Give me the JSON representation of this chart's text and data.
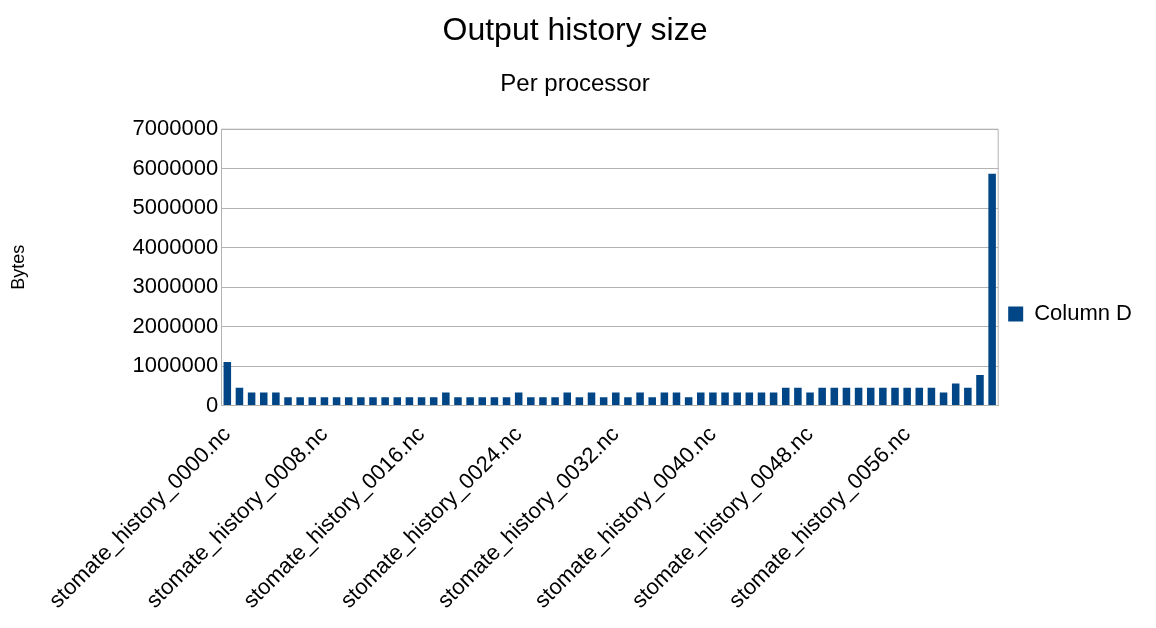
{
  "chart_data": {
    "type": "bar",
    "title": "Output history size",
    "subtitle": "Per processor",
    "ylabel": "Bytes",
    "categories": [
      "stomate_history_0000.nc",
      null,
      null,
      null,
      null,
      null,
      null,
      null,
      "stomate_history_0008.nc",
      null,
      null,
      null,
      null,
      null,
      null,
      null,
      "stomate_history_0016.nc",
      null,
      null,
      null,
      null,
      null,
      null,
      null,
      "stomate_history_0024.nc",
      null,
      null,
      null,
      null,
      null,
      null,
      null,
      "stomate_history_0032.nc",
      null,
      null,
      null,
      null,
      null,
      null,
      null,
      "stomate_history_0040.nc",
      null,
      null,
      null,
      null,
      null,
      null,
      null,
      "stomate_history_0048.nc",
      null,
      null,
      null,
      null,
      null,
      null,
      null,
      "stomate_history_0056.nc",
      null,
      null,
      null,
      null,
      null,
      null,
      null
    ],
    "series": [
      {
        "name": "Column D",
        "color": "#004586",
        "values": [
          1100000,
          450000,
          330000,
          330000,
          330000,
          210000,
          210000,
          210000,
          210000,
          210000,
          210000,
          210000,
          210000,
          210000,
          210000,
          210000,
          210000,
          210000,
          330000,
          210000,
          210000,
          210000,
          210000,
          210000,
          330000,
          210000,
          210000,
          210000,
          330000,
          210000,
          330000,
          210000,
          330000,
          210000,
          330000,
          210000,
          330000,
          330000,
          210000,
          330000,
          330000,
          330000,
          330000,
          330000,
          330000,
          330000,
          450000,
          450000,
          330000,
          450000,
          450000,
          450000,
          450000,
          450000,
          450000,
          450000,
          450000,
          450000,
          450000,
          330000,
          560000,
          450000,
          770000,
          5870000
        ]
      }
    ],
    "ylim": [
      0,
      7000000
    ],
    "yticks": [
      0,
      1000000,
      2000000,
      3000000,
      4000000,
      5000000,
      6000000,
      7000000
    ],
    "grid": "y",
    "legend": "right"
  }
}
